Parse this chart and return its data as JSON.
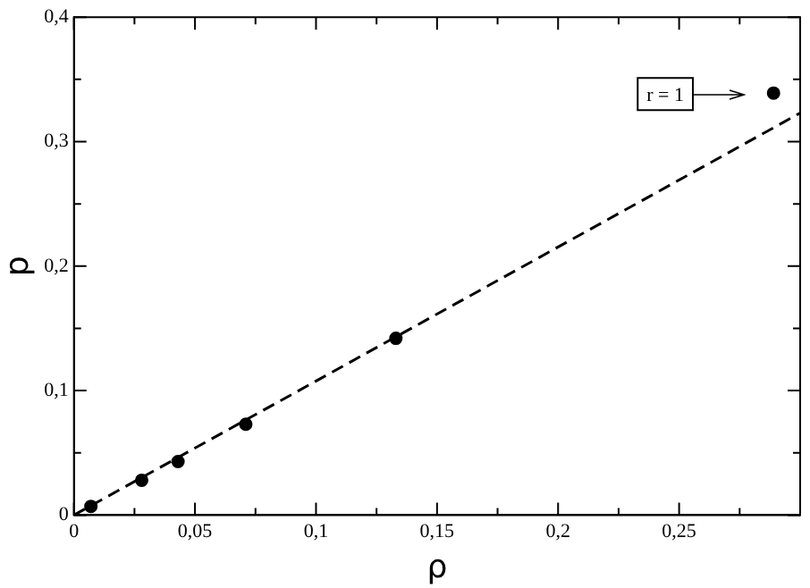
{
  "chart_data": {
    "type": "scatter",
    "xlabel": "ρ",
    "ylabel": "p",
    "series": [
      {
        "color": "#000000",
        "marker": "circle",
        "x": [
          0.007,
          0.028,
          0.043,
          0.071,
          0.133,
          0.289
        ],
        "values": [
          0.007,
          0.028,
          0.043,
          0.073,
          0.142,
          0.339
        ]
      },
      {
        "type": "line",
        "color": "#000000",
        "marker": "none",
        "line_style": "dashed",
        "x": [
          0,
          0.3
        ],
        "values": [
          0,
          0.323
        ]
      }
    ],
    "xlim": [
      0,
      0.3
    ],
    "xticks": [
      0,
      {
        "value": 0.025,
        "label": null
      },
      {
        "value": 0.05,
        "label": "0,05"
      },
      {
        "value": 0.075,
        "label": null
      },
      {
        "value": 0.1,
        "label": "0,1"
      },
      {
        "value": 0.125,
        "label": null
      },
      {
        "value": 0.15,
        "label": "0,15"
      },
      {
        "value": 0.175,
        "label": null
      },
      {
        "value": 0.2,
        "label": "0,2"
      },
      {
        "value": 0.225,
        "label": null
      },
      {
        "value": 0.25,
        "label": "0,25"
      },
      {
        "value": 0.275,
        "label": null
      }
    ],
    "ylim": [
      0,
      0.4
    ],
    "yticks": [
      0,
      {
        "value": 0.05,
        "label": null
      },
      {
        "value": 0.1,
        "label": "0,1"
      },
      {
        "value": 0.15,
        "label": null
      },
      {
        "value": 0.2,
        "label": "0,2"
      },
      {
        "value": 0.25,
        "label": null
      },
      {
        "value": 0.3,
        "label": "0,3"
      },
      {
        "value": 0.35,
        "label": null
      },
      {
        "value": 0.4,
        "label": "0,4"
      }
    ],
    "grid": false,
    "legend": false,
    "annotations": [
      "r = 1"
    ]
  }
}
